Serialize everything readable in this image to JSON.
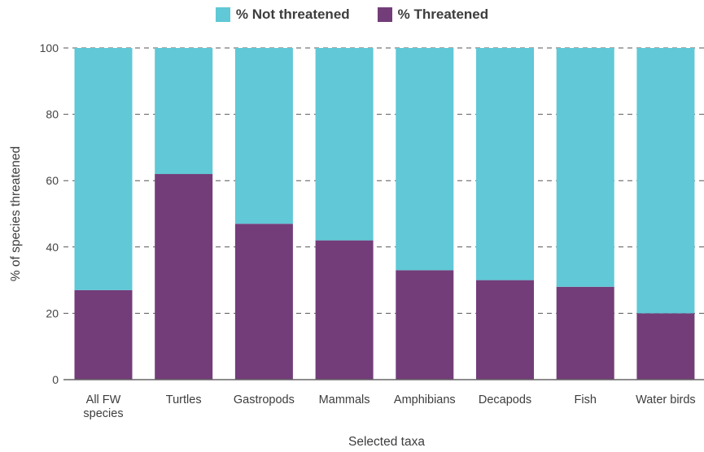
{
  "chart_data": {
    "type": "bar",
    "stacked": true,
    "categories": [
      [
        "All FW",
        "species"
      ],
      [
        "Turtles"
      ],
      [
        "Gastropods"
      ],
      [
        "Mammals"
      ],
      [
        "Amphibians"
      ],
      [
        "Decapods"
      ],
      [
        "Fish"
      ],
      [
        "Water birds"
      ]
    ],
    "series": [
      {
        "name": "% Threatened",
        "color": "#733d79",
        "values": [
          27,
          62,
          47,
          42,
          33,
          30,
          28,
          20
        ]
      },
      {
        "name": "% Not threatened",
        "color": "#60c8d6",
        "values": [
          73,
          38,
          53,
          58,
          67,
          70,
          72,
          80
        ]
      }
    ],
    "legend_order": [
      "% Not threatened",
      "% Threatened"
    ],
    "legend_position": "top",
    "xlabel": "Selected taxa",
    "ylabel": "% of species threatened",
    "ylim": [
      0,
      100
    ],
    "yticks": [
      0,
      20,
      40,
      60,
      80,
      100
    ],
    "grid": "dashed horizontal"
  }
}
